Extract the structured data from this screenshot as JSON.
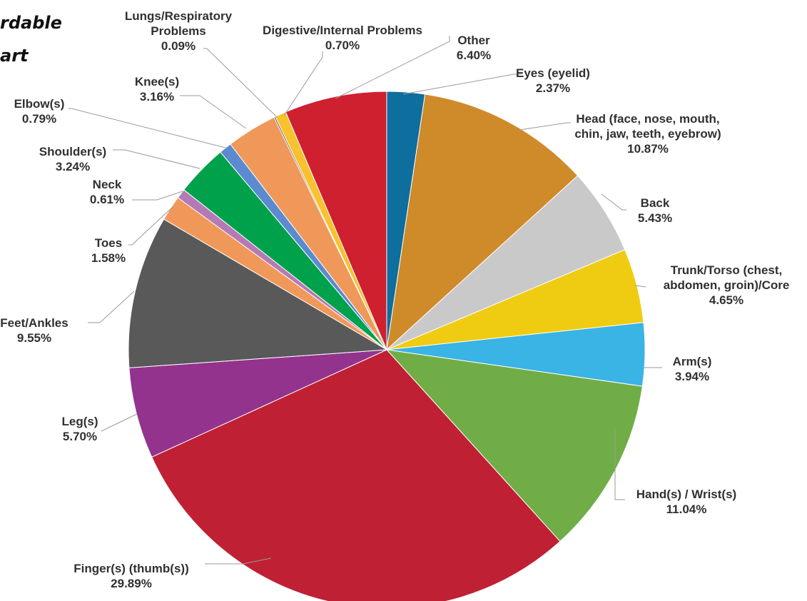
{
  "title_lines": [
    "rdable",
    "art"
  ],
  "chart_data": {
    "type": "pie",
    "title": "",
    "start_angle_deg": 0,
    "direction": "clockwise",
    "slices": [
      {
        "label": [
          "Eyes (eyelid)"
        ],
        "value": 2.37,
        "pct_text": "2.37%",
        "color": "#0e6e9e"
      },
      {
        "label": [
          "Head (face, nose, mouth,",
          "chin, jaw, teeth, eyebrow)"
        ],
        "value": 10.87,
        "pct_text": "10.87%",
        "color": "#cf8a2a"
      },
      {
        "label": [
          "Back"
        ],
        "value": 5.43,
        "pct_text": "5.43%",
        "color": "#c9c9c9"
      },
      {
        "label": [
          "Trunk/Torso (chest,",
          "abdomen, groin)/Core"
        ],
        "value": 4.65,
        "pct_text": "4.65%",
        "color": "#efcc12"
      },
      {
        "label": [
          "Arm(s)"
        ],
        "value": 3.94,
        "pct_text": "3.94%",
        "color": "#3ab3e5"
      },
      {
        "label": [
          "Hand(s) / Wrist(s)"
        ],
        "value": 11.04,
        "pct_text": "11.04%",
        "color": "#70ad47"
      },
      {
        "label": [
          "Finger(s) (thumb(s))"
        ],
        "value": 29.89,
        "pct_text": "29.89%",
        "color": "#bf2033"
      },
      {
        "label": [
          "Leg(s)"
        ],
        "value": 5.7,
        "pct_text": "5.70%",
        "color": "#93338e"
      },
      {
        "label": [
          "Feet/Ankles"
        ],
        "value": 9.55,
        "pct_text": "9.55%",
        "color": "#595959"
      },
      {
        "label": [
          "Toes"
        ],
        "value": 1.58,
        "pct_text": "1.58%",
        "color": "#f0985a"
      },
      {
        "label": [
          "Neck"
        ],
        "value": 0.61,
        "pct_text": "0.61%",
        "color": "#b57ab5"
      },
      {
        "label": [
          "Shoulder(s)"
        ],
        "value": 3.24,
        "pct_text": "3.24%",
        "color": "#00a14b"
      },
      {
        "label": [
          "Elbow(s)"
        ],
        "value": 0.79,
        "pct_text": "0.79%",
        "color": "#5b8ad0"
      },
      {
        "label": [
          "Knee(s)"
        ],
        "value": 3.16,
        "pct_text": "3.16%",
        "color": "#f0985a"
      },
      {
        "label": [
          "Lungs/Respiratory",
          "Problems"
        ],
        "value": 0.09,
        "pct_text": "0.09%",
        "color": "#4f4f4f"
      },
      {
        "label": [
          "Digestive/Internal Problems"
        ],
        "value": 0.7,
        "pct_text": "0.70%",
        "color": "#f7c22d"
      },
      {
        "label": [
          "Other"
        ],
        "value": 6.4,
        "pct_text": "6.40%",
        "color": "#cf2030"
      }
    ]
  }
}
